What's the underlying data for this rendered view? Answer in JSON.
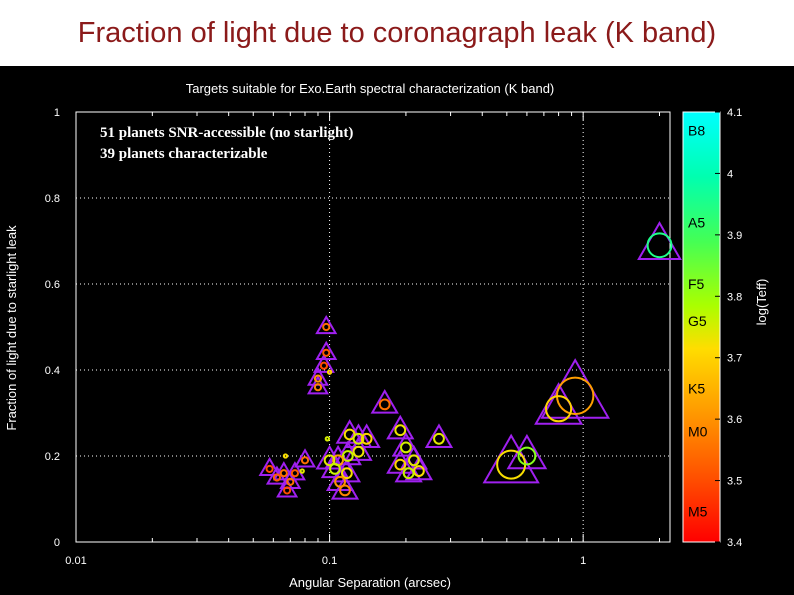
{
  "slide": {
    "title": "Fraction of light due to coronagraph leak (K band)"
  },
  "chart_data": {
    "type": "scatter",
    "title": "Targets suitable for Exo.Earth spectral characterization (K band)",
    "xlabel": "Angular Separation (arcsec)",
    "ylabel": "Fraction of light due to starlight leak",
    "xscale": "log",
    "xlim": [
      0.01,
      2.2
    ],
    "ylim": [
      0,
      1
    ],
    "xticks": [
      {
        "value": 0.01,
        "label": "0.01"
      },
      {
        "value": 0.1,
        "label": "0.1"
      },
      {
        "value": 1,
        "label": "1"
      }
    ],
    "yticks": [
      {
        "value": 0,
        "label": "0"
      },
      {
        "value": 0.2,
        "label": "0.2"
      },
      {
        "value": 0.4,
        "label": "0.4"
      },
      {
        "value": 0.6,
        "label": "0.6"
      },
      {
        "value": 0.8,
        "label": "0.8"
      },
      {
        "value": 1,
        "label": "1"
      }
    ],
    "grid": true,
    "annotations": [
      "51  planets SNR-accessible (no starlight)",
      "39 planets characterizable"
    ],
    "colorbar": {
      "label": "log(Teff)",
      "range": [
        3.4,
        4.1
      ],
      "ticks": [
        {
          "value": 4.1,
          "label": "4.1"
        },
        {
          "value": 4.0,
          "label": "4"
        },
        {
          "value": 3.9,
          "label": "3.9"
        },
        {
          "value": 3.8,
          "label": "3.8"
        },
        {
          "value": 3.7,
          "label": "3.7"
        },
        {
          "value": 3.6,
          "label": "3.6"
        },
        {
          "value": 3.5,
          "label": "3.5"
        },
        {
          "value": 3.4,
          "label": "3.4"
        }
      ],
      "spectral_types": [
        {
          "label": "B8",
          "value": 4.07
        },
        {
          "label": "A5",
          "value": 3.92
        },
        {
          "label": "F5",
          "value": 3.82
        },
        {
          "label": "G5",
          "value": 3.76
        },
        {
          "label": "K5",
          "value": 3.65
        },
        {
          "label": "M0",
          "value": 3.58
        },
        {
          "label": "M5",
          "value": 3.45
        }
      ]
    },
    "triangles": [
      {
        "x": 2.0,
        "y": 0.69,
        "s": 1.0
      },
      {
        "x": 0.93,
        "y": 0.34,
        "s": 1.6
      },
      {
        "x": 0.8,
        "y": 0.31,
        "s": 1.1
      },
      {
        "x": 0.52,
        "y": 0.18,
        "s": 1.3
      },
      {
        "x": 0.6,
        "y": 0.2,
        "s": 0.9
      },
      {
        "x": 0.27,
        "y": 0.24,
        "s": 0.6
      },
      {
        "x": 0.165,
        "y": 0.32,
        "s": 0.6
      },
      {
        "x": 0.19,
        "y": 0.26,
        "s": 0.6
      },
      {
        "x": 0.2,
        "y": 0.22,
        "s": 0.6
      },
      {
        "x": 0.215,
        "y": 0.19,
        "s": 0.6
      },
      {
        "x": 0.225,
        "y": 0.165,
        "s": 0.6
      },
      {
        "x": 0.205,
        "y": 0.16,
        "s": 0.6
      },
      {
        "x": 0.19,
        "y": 0.18,
        "s": 0.6
      },
      {
        "x": 0.12,
        "y": 0.25,
        "s": 0.6
      },
      {
        "x": 0.13,
        "y": 0.24,
        "s": 0.6
      },
      {
        "x": 0.14,
        "y": 0.24,
        "s": 0.6
      },
      {
        "x": 0.13,
        "y": 0.21,
        "s": 0.6
      },
      {
        "x": 0.118,
        "y": 0.2,
        "s": 0.6
      },
      {
        "x": 0.108,
        "y": 0.19,
        "s": 0.6
      },
      {
        "x": 0.1,
        "y": 0.19,
        "s": 0.6
      },
      {
        "x": 0.105,
        "y": 0.17,
        "s": 0.6
      },
      {
        "x": 0.117,
        "y": 0.16,
        "s": 0.6
      },
      {
        "x": 0.11,
        "y": 0.14,
        "s": 0.6
      },
      {
        "x": 0.115,
        "y": 0.12,
        "s": 0.6
      },
      {
        "x": 0.097,
        "y": 0.5,
        "s": 0.45
      },
      {
        "x": 0.097,
        "y": 0.44,
        "s": 0.45
      },
      {
        "x": 0.095,
        "y": 0.41,
        "s": 0.45
      },
      {
        "x": 0.09,
        "y": 0.38,
        "s": 0.45
      },
      {
        "x": 0.09,
        "y": 0.36,
        "s": 0.45
      },
      {
        "x": 0.08,
        "y": 0.19,
        "s": 0.45
      },
      {
        "x": 0.073,
        "y": 0.16,
        "s": 0.45
      },
      {
        "x": 0.07,
        "y": 0.14,
        "s": 0.45
      },
      {
        "x": 0.068,
        "y": 0.12,
        "s": 0.45
      },
      {
        "x": 0.066,
        "y": 0.16,
        "s": 0.45
      },
      {
        "x": 0.062,
        "y": 0.15,
        "s": 0.45
      },
      {
        "x": 0.058,
        "y": 0.17,
        "s": 0.45
      }
    ],
    "circles": [
      {
        "x": 2.0,
        "y": 0.69,
        "r": 0.85,
        "teff": 3.95
      },
      {
        "x": 0.93,
        "y": 0.34,
        "r": 1.3,
        "teff": 3.62
      },
      {
        "x": 0.8,
        "y": 0.31,
        "r": 0.9,
        "teff": 3.7
      },
      {
        "x": 0.52,
        "y": 0.18,
        "r": 1.0,
        "teff": 3.72
      },
      {
        "x": 0.6,
        "y": 0.2,
        "r": 0.6,
        "teff": 3.82
      },
      {
        "x": 0.27,
        "y": 0.24,
        "r": 0.35,
        "teff": 3.74
      },
      {
        "x": 0.165,
        "y": 0.32,
        "r": 0.35,
        "teff": 3.55
      },
      {
        "x": 0.19,
        "y": 0.26,
        "r": 0.35,
        "teff": 3.73
      },
      {
        "x": 0.2,
        "y": 0.22,
        "r": 0.35,
        "teff": 3.75
      },
      {
        "x": 0.215,
        "y": 0.19,
        "r": 0.35,
        "teff": 3.74
      },
      {
        "x": 0.225,
        "y": 0.165,
        "r": 0.35,
        "teff": 3.72
      },
      {
        "x": 0.205,
        "y": 0.16,
        "r": 0.35,
        "teff": 3.76
      },
      {
        "x": 0.19,
        "y": 0.18,
        "r": 0.35,
        "teff": 3.7
      },
      {
        "x": 0.12,
        "y": 0.25,
        "r": 0.35,
        "teff": 3.72
      },
      {
        "x": 0.13,
        "y": 0.24,
        "r": 0.35,
        "teff": 3.75
      },
      {
        "x": 0.14,
        "y": 0.24,
        "r": 0.35,
        "teff": 3.7
      },
      {
        "x": 0.13,
        "y": 0.21,
        "r": 0.35,
        "teff": 3.73
      },
      {
        "x": 0.118,
        "y": 0.2,
        "r": 0.35,
        "teff": 3.76
      },
      {
        "x": 0.108,
        "y": 0.19,
        "r": 0.35,
        "teff": 3.62
      },
      {
        "x": 0.1,
        "y": 0.19,
        "r": 0.35,
        "teff": 3.74
      },
      {
        "x": 0.105,
        "y": 0.17,
        "r": 0.35,
        "teff": 3.76
      },
      {
        "x": 0.117,
        "y": 0.16,
        "r": 0.35,
        "teff": 3.72
      },
      {
        "x": 0.11,
        "y": 0.14,
        "r": 0.35,
        "teff": 3.6
      },
      {
        "x": 0.115,
        "y": 0.12,
        "r": 0.35,
        "teff": 3.58
      },
      {
        "x": 0.097,
        "y": 0.5,
        "r": 0.22,
        "teff": 3.55
      },
      {
        "x": 0.097,
        "y": 0.44,
        "r": 0.22,
        "teff": 3.52
      },
      {
        "x": 0.095,
        "y": 0.41,
        "r": 0.22,
        "teff": 3.5
      },
      {
        "x": 0.09,
        "y": 0.38,
        "r": 0.22,
        "teff": 3.6
      },
      {
        "x": 0.09,
        "y": 0.36,
        "r": 0.22,
        "teff": 3.58
      },
      {
        "x": 0.08,
        "y": 0.19,
        "r": 0.22,
        "teff": 3.55
      },
      {
        "x": 0.073,
        "y": 0.16,
        "r": 0.22,
        "teff": 3.52
      },
      {
        "x": 0.07,
        "y": 0.14,
        "r": 0.22,
        "teff": 3.55
      },
      {
        "x": 0.068,
        "y": 0.12,
        "r": 0.22,
        "teff": 3.5
      },
      {
        "x": 0.066,
        "y": 0.16,
        "r": 0.22,
        "teff": 3.55
      },
      {
        "x": 0.062,
        "y": 0.15,
        "r": 0.22,
        "teff": 3.52
      },
      {
        "x": 0.058,
        "y": 0.17,
        "r": 0.22,
        "teff": 3.5
      },
      {
        "x": 0.098,
        "y": 0.24,
        "r": 0.12,
        "teff": 3.75
      },
      {
        "x": 0.067,
        "y": 0.2,
        "r": 0.12,
        "teff": 3.72
      },
      {
        "x": 0.078,
        "y": 0.165,
        "r": 0.12,
        "teff": 3.74
      },
      {
        "x": 0.1,
        "y": 0.395,
        "r": 0.12,
        "teff": 3.7
      }
    ]
  }
}
